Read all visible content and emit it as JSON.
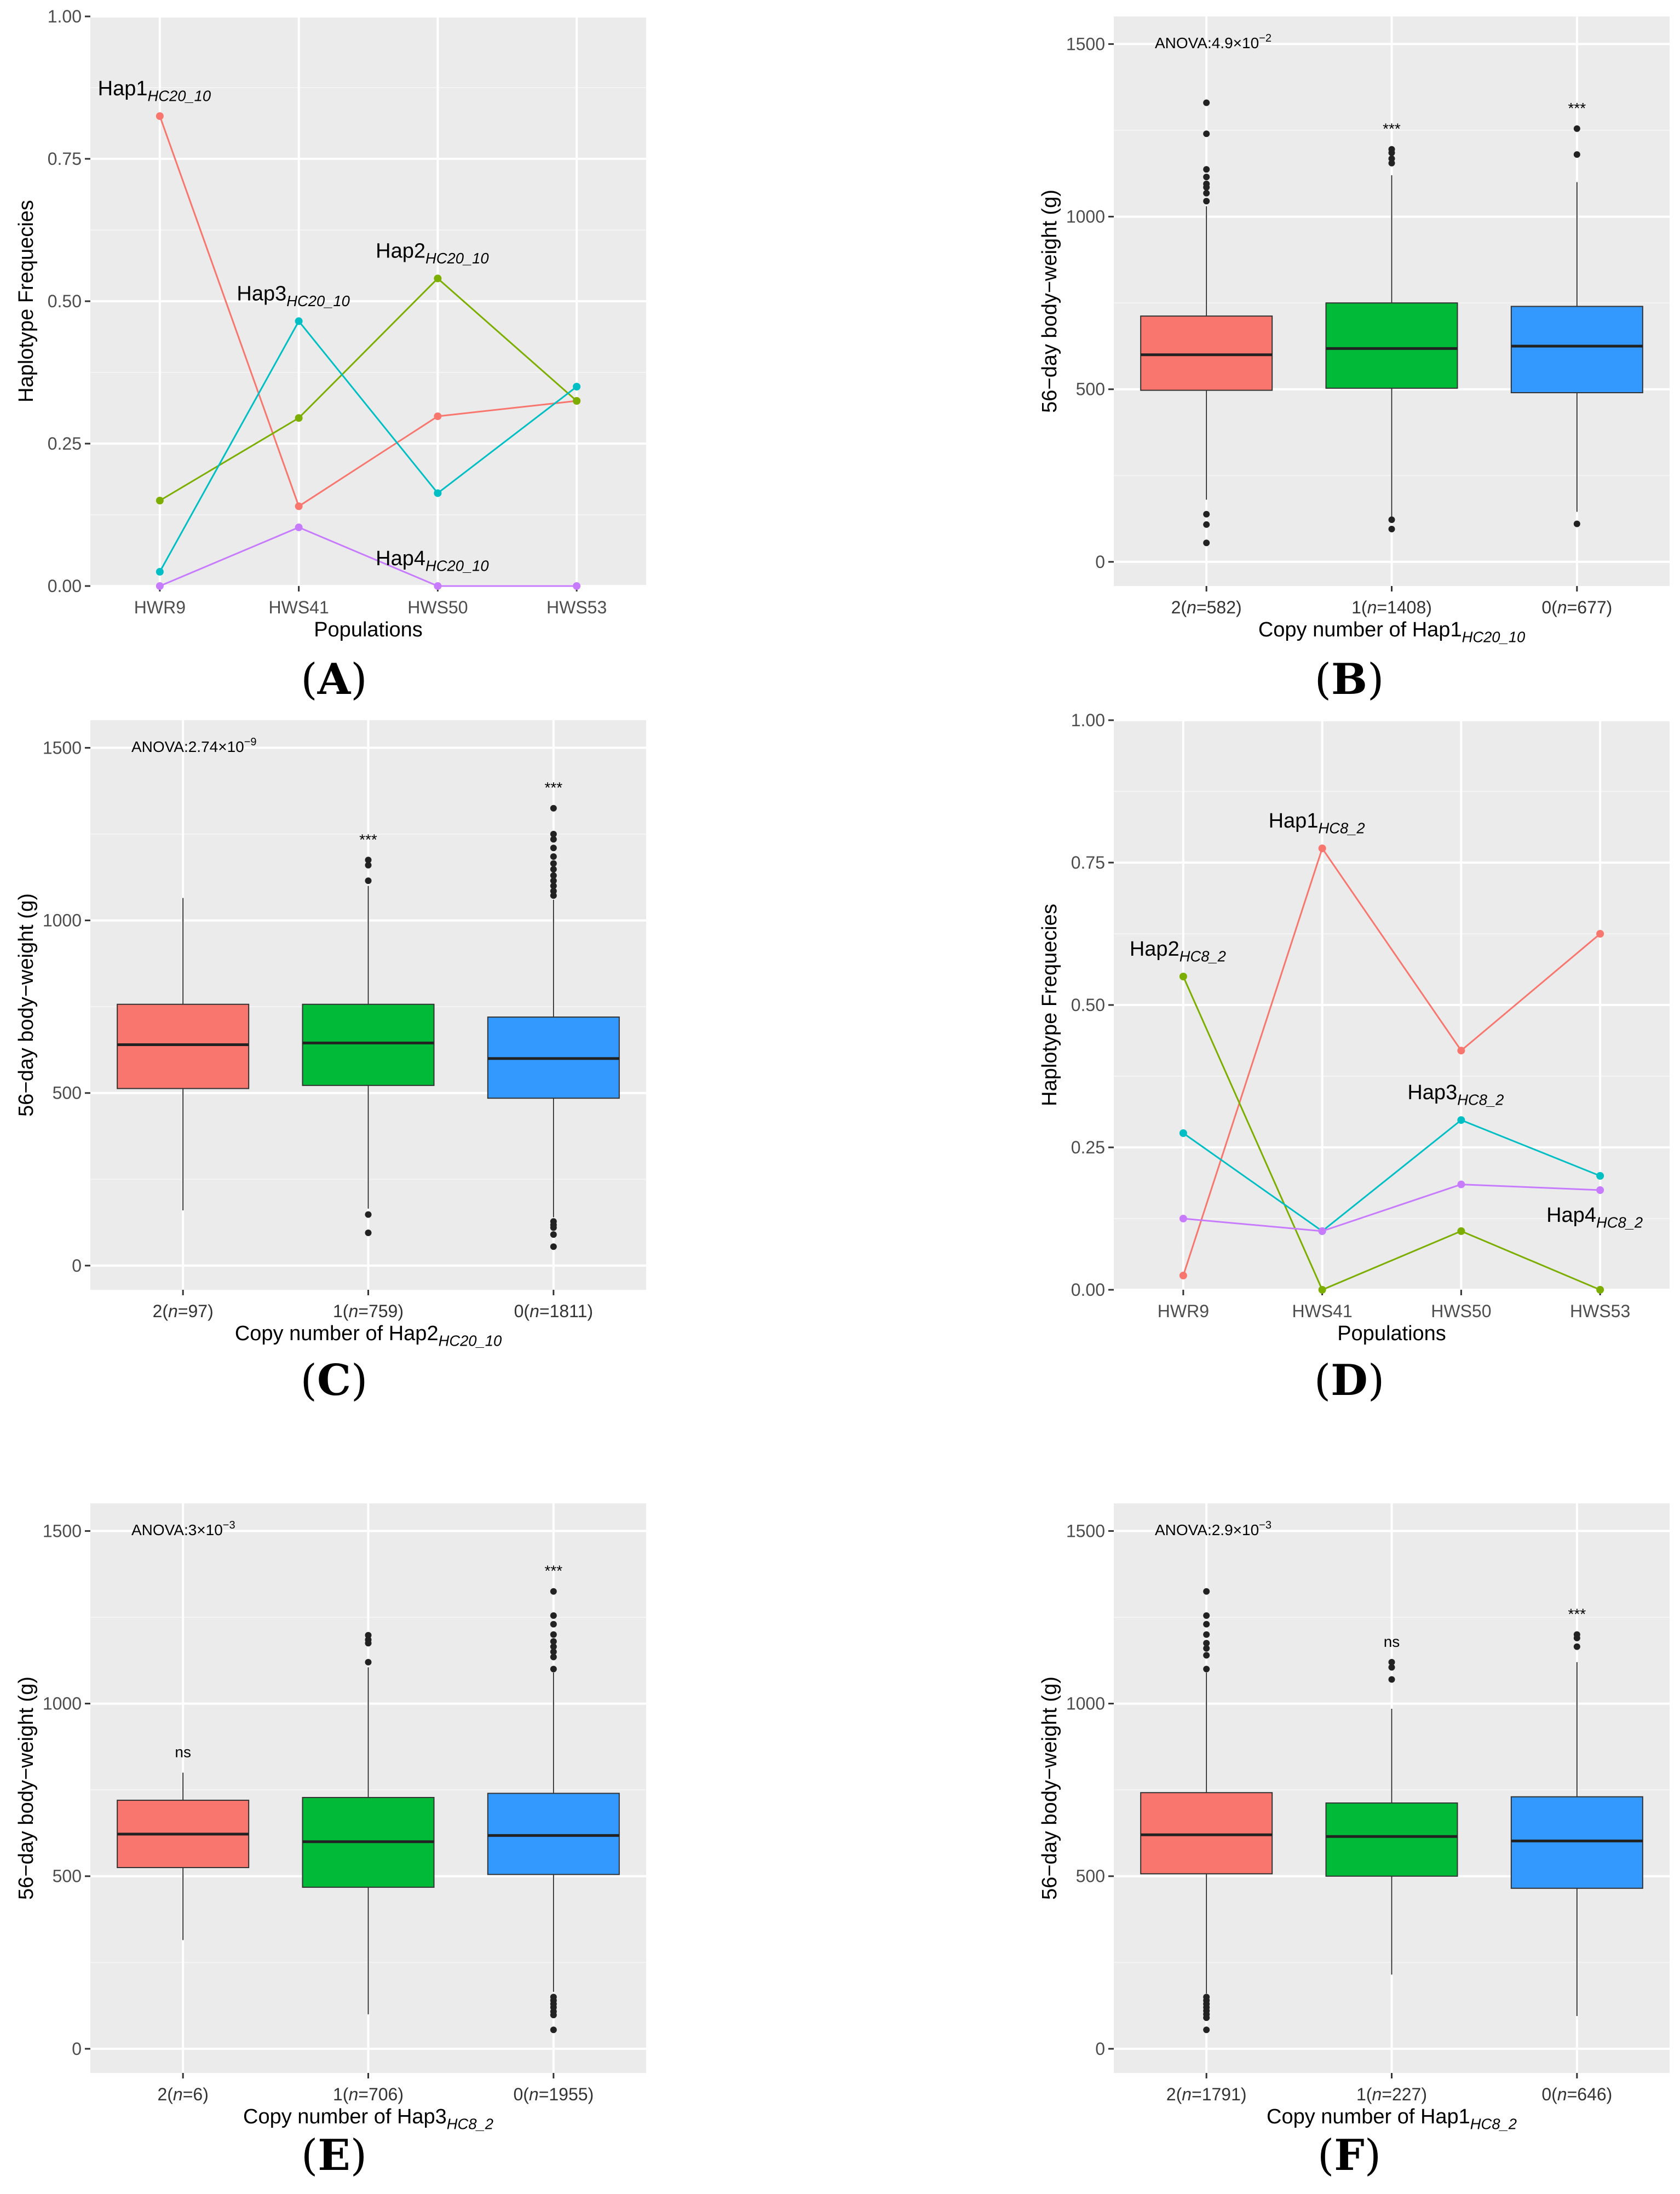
{
  "colors": {
    "panel_bg": "#EBEBEB",
    "grid_major": "#FFFFFF",
    "grid_minor": "#F4F4F4",
    "hap1": "#F8766D",
    "hap2": "#7CAE00",
    "hap3": "#00BFC4",
    "hap4": "#C77CFF",
    "box1": "#F8766D",
    "box2": "#00BA38",
    "box3": "#3399FF"
  },
  "chart_data": [
    {
      "id": "A",
      "panel_label": "A",
      "type": "line",
      "xlabel": "Populations",
      "ylabel": "Haplotype Frequecies",
      "categories": [
        "HWR9",
        "HWS41",
        "HWS50",
        "HWS53"
      ],
      "ylim": [
        0,
        1
      ],
      "yticks": [
        0,
        0.25,
        0.5,
        0.75,
        1
      ],
      "ytick_labels": [
        "0.00",
        "0.25",
        "0.50",
        "0.75",
        "1.00"
      ],
      "series": [
        {
          "name": "Hap1",
          "sub": "HC20_10",
          "color": "#F8766D",
          "values": [
            0.825,
            0.14,
            0.298,
            0.325
          ],
          "label_pos": "above-first"
        },
        {
          "name": "Hap2",
          "sub": "HC20_10",
          "color": "#7CAE00",
          "values": [
            0.15,
            0.295,
            0.54,
            0.325
          ],
          "label_pos": "above-third"
        },
        {
          "name": "Hap3",
          "sub": "HC20_10",
          "color": "#00BFC4",
          "values": [
            0.025,
            0.465,
            0.163,
            0.35
          ],
          "label_pos": "above-second"
        },
        {
          "name": "Hap4",
          "sub": "HC20_10",
          "color": "#C77CFF",
          "values": [
            0.0,
            0.103,
            0.0,
            0.0
          ],
          "label_pos": "above-third"
        }
      ]
    },
    {
      "id": "B",
      "panel_label": "B",
      "type": "box",
      "ylabel": "56−day body−weight (g)",
      "xlabel_main": "Copy number of Hap1",
      "xlabel_sub": "HC20_10",
      "anova_prefix": "ANOVA:4.9×10",
      "anova_exp": "−2",
      "ylim": [
        -70,
        1580
      ],
      "yticks": [
        0,
        500,
        1000,
        1500
      ],
      "ytick_labels": [
        "0",
        "500",
        "1000",
        "1500"
      ],
      "groups": [
        {
          "copy": "2",
          "n": "582",
          "color": "#F8766D",
          "q1": 497,
          "median": 600,
          "q3": 712,
          "whisker_low": 180,
          "whisker_high": 1030,
          "outliers": [
            55,
            108,
            138,
            1045,
            1068,
            1085,
            1095,
            1115,
            1137,
            1240,
            1330
          ],
          "sig": ""
        },
        {
          "copy": "1",
          "n": "1408",
          "color": "#00BA38",
          "q1": 503,
          "median": 618,
          "q3": 750,
          "whisker_low": 130,
          "whisker_high": 1120,
          "outliers": [
            95,
            122,
            1155,
            1168,
            1185,
            1195
          ],
          "sig": "***"
        },
        {
          "copy": "0",
          "n": "677",
          "color": "#3399FF",
          "q1": 490,
          "median": 625,
          "q3": 740,
          "whisker_low": 145,
          "whisker_high": 1100,
          "outliers": [
            110,
            1180,
            1255
          ],
          "sig": "***"
        }
      ]
    },
    {
      "id": "C",
      "panel_label": "C",
      "type": "box",
      "ylabel": "56−day body−weight (g)",
      "xlabel_main": "Copy number of Hap2",
      "xlabel_sub": "HC20_10",
      "anova_prefix": "ANOVA:2.74×10",
      "anova_exp": "−9",
      "ylim": [
        -70,
        1580
      ],
      "yticks": [
        0,
        500,
        1000,
        1500
      ],
      "ytick_labels": [
        "0",
        "500",
        "1000",
        "1500"
      ],
      "groups": [
        {
          "copy": "2",
          "n": "97",
          "color": "#F8766D",
          "q1": 513,
          "median": 640,
          "q3": 757,
          "whisker_low": 160,
          "whisker_high": 1065,
          "outliers": [],
          "sig": ""
        },
        {
          "copy": "1",
          "n": "759",
          "color": "#00BA38",
          "q1": 522,
          "median": 645,
          "q3": 757,
          "whisker_low": 165,
          "whisker_high": 1100,
          "outliers": [
            95,
            148,
            1115,
            1160,
            1175
          ],
          "sig": "***"
        },
        {
          "copy": "0",
          "n": "1811",
          "color": "#3399FF",
          "q1": 485,
          "median": 600,
          "q3": 720,
          "whisker_low": 140,
          "whisker_high": 1060,
          "outliers": [
            55,
            90,
            110,
            118,
            128,
            1072,
            1085,
            1100,
            1115,
            1130,
            1148,
            1165,
            1185,
            1210,
            1235,
            1250,
            1325
          ],
          "sig": "***"
        }
      ]
    },
    {
      "id": "D",
      "panel_label": "D",
      "type": "line",
      "xlabel": "Populations",
      "ylabel": "Haplotype Frequecies",
      "categories": [
        "HWR9",
        "HWS41",
        "HWS50",
        "HWS53"
      ],
      "ylim": [
        0,
        1
      ],
      "yticks": [
        0,
        0.25,
        0.5,
        0.75,
        1
      ],
      "ytick_labels": [
        "0.00",
        "0.25",
        "0.50",
        "0.75",
        "1.00"
      ],
      "series": [
        {
          "name": "Hap1",
          "sub": "HC8_2",
          "color": "#F8766D",
          "values": [
            0.025,
            0.775,
            0.42,
            0.625
          ],
          "label_pos": "above-second"
        },
        {
          "name": "Hap2",
          "sub": "HC8_2",
          "color": "#7CAE00",
          "values": [
            0.55,
            0.0,
            0.103,
            0.0
          ],
          "label_pos": "above-first"
        },
        {
          "name": "Hap3",
          "sub": "HC8_2",
          "color": "#00BFC4",
          "values": [
            0.275,
            0.103,
            0.298,
            0.2
          ],
          "label_pos": "above-third"
        },
        {
          "name": "Hap4",
          "sub": "HC8_2",
          "color": "#C77CFF",
          "values": [
            0.125,
            0.103,
            0.185,
            0.175
          ],
          "label_pos": "below-fourth"
        }
      ]
    },
    {
      "id": "E",
      "panel_label": "E",
      "type": "box",
      "ylabel": "56−day body−weight (g)",
      "xlabel_main": "Copy number of Hap3",
      "xlabel_sub": "HC8_2",
      "anova_prefix": "ANOVA:3×10",
      "anova_exp": "−3",
      "ylim": [
        -70,
        1580
      ],
      "yticks": [
        0,
        500,
        1000,
        1500
      ],
      "ytick_labels": [
        "0",
        "500",
        "1000",
        "1500"
      ],
      "groups": [
        {
          "copy": "2",
          "n": "6",
          "color": "#F8766D",
          "q1": 525,
          "median": 622,
          "q3": 720,
          "whisker_low": 315,
          "whisker_high": 800,
          "outliers": [],
          "sig": "ns"
        },
        {
          "copy": "1",
          "n": "706",
          "color": "#00BA38",
          "q1": 468,
          "median": 600,
          "q3": 728,
          "whisker_low": 100,
          "whisker_high": 1105,
          "outliers": [
            1120,
            1175,
            1185,
            1198
          ],
          "sig": ""
        },
        {
          "copy": "0",
          "n": "1955",
          "color": "#3399FF",
          "q1": 505,
          "median": 618,
          "q3": 740,
          "whisker_low": 165,
          "whisker_high": 1090,
          "outliers": [
            55,
            98,
            108,
            120,
            130,
            140,
            150,
            1100,
            1135,
            1150,
            1165,
            1180,
            1200,
            1230,
            1255,
            1325
          ],
          "sig": "***"
        }
      ]
    },
    {
      "id": "F",
      "panel_label": "F",
      "type": "box",
      "ylabel": "56−day body−weight (g)",
      "xlabel_main": "Copy number of Hap1",
      "xlabel_sub": "HC8_2",
      "anova_prefix": "ANOVA:2.9×10",
      "anova_exp": "−3",
      "ylim": [
        -70,
        1580
      ],
      "yticks": [
        0,
        500,
        1000,
        1500
      ],
      "ytick_labels": [
        "0",
        "500",
        "1000",
        "1500"
      ],
      "groups": [
        {
          "copy": "2",
          "n": "1791",
          "color": "#F8766D",
          "q1": 507,
          "median": 620,
          "q3": 742,
          "whisker_low": 160,
          "whisker_high": 1090,
          "outliers": [
            55,
            90,
            100,
            110,
            120,
            130,
            140,
            150,
            1100,
            1140,
            1160,
            1175,
            1200,
            1230,
            1255,
            1325
          ],
          "sig": ""
        },
        {
          "copy": "1",
          "n": "227",
          "color": "#00BA38",
          "q1": 500,
          "median": 615,
          "q3": 712,
          "whisker_low": 215,
          "whisker_high": 985,
          "outliers": [
            1070,
            1105,
            1120
          ],
          "sig": "ns"
        },
        {
          "copy": "0",
          "n": "646",
          "color": "#3399FF",
          "q1": 465,
          "median": 602,
          "q3": 730,
          "whisker_low": 95,
          "whisker_high": 1120,
          "outliers": [
            1165,
            1190,
            1200
          ],
          "sig": "***"
        }
      ]
    }
  ]
}
